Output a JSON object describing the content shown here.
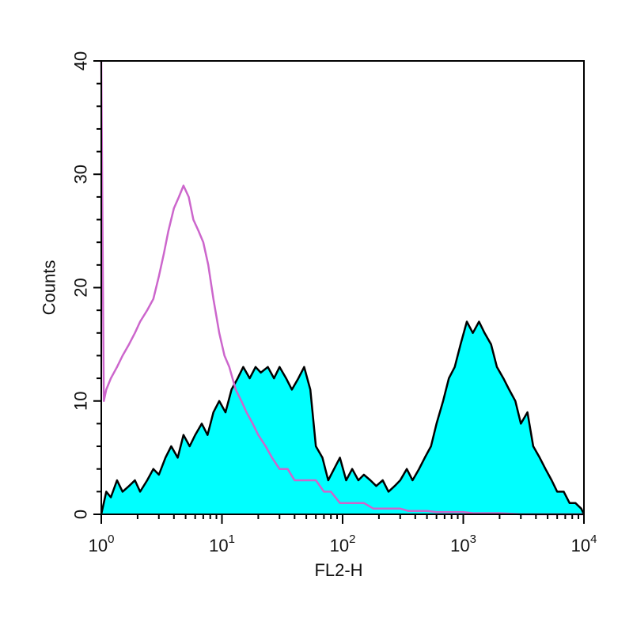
{
  "chart_data": {
    "type": "area",
    "xlabel": "FL2-H",
    "ylabel": "Counts",
    "x_scale": "log",
    "xlim": [
      1,
      10000
    ],
    "ylim": [
      0,
      40
    ],
    "x_ticks": [
      {
        "base": "10",
        "exp": "0",
        "value": 1
      },
      {
        "base": "10",
        "exp": "1",
        "value": 10
      },
      {
        "base": "10",
        "exp": "2",
        "value": 100
      },
      {
        "base": "10",
        "exp": "3",
        "value": 1000
      },
      {
        "base": "10",
        "exp": "4",
        "value": 10000
      }
    ],
    "y_ticks": [
      "0",
      "10",
      "20",
      "30",
      "40"
    ],
    "y_tick_values": [
      0,
      10,
      20,
      30,
      40
    ],
    "grid": false,
    "series": [
      {
        "style": "filled",
        "fill": "#00ffff",
        "stroke": "#000000",
        "x": [
          1,
          1.1,
          1.2,
          1.35,
          1.5,
          1.7,
          1.9,
          2.1,
          2.4,
          2.7,
          3.0,
          3.4,
          3.8,
          4.3,
          4.8,
          5.4,
          6.0,
          6.8,
          7.6,
          8.5,
          9.5,
          10.7,
          12,
          13.5,
          15,
          17,
          19,
          21,
          24,
          27,
          30,
          34,
          38,
          43,
          48,
          54,
          60,
          68,
          76,
          85,
          95,
          107,
          120,
          135,
          150,
          170,
          190,
          215,
          240,
          270,
          300,
          340,
          380,
          430,
          480,
          540,
          600,
          680,
          760,
          850,
          950,
          1070,
          1200,
          1350,
          1500,
          1700,
          1900,
          2150,
          2400,
          2700,
          3000,
          3400,
          3800,
          4300,
          4800,
          5400,
          6000,
          6800,
          7600,
          8500,
          9500,
          10000
        ],
        "values": [
          0,
          2,
          1.5,
          3,
          2,
          2.5,
          3,
          2,
          3,
          4,
          3.5,
          5,
          6,
          5,
          7,
          6,
          7,
          8,
          7,
          9,
          10,
          9,
          11,
          12,
          13,
          12,
          13,
          12.5,
          13,
          12,
          13,
          12,
          11,
          12,
          13,
          11,
          6,
          5,
          3,
          4,
          5,
          3,
          4,
          3,
          3.5,
          3,
          2.5,
          3,
          2,
          2.5,
          3,
          4,
          3,
          4,
          5,
          6,
          8,
          10,
          12,
          13,
          15,
          17,
          16,
          17,
          16,
          15,
          13,
          12,
          11,
          10,
          8,
          9,
          6,
          5,
          4,
          3,
          2,
          2,
          1,
          1,
          0.5,
          0
        ]
      },
      {
        "style": "outline",
        "stroke": "#cc66cc",
        "x": [
          1,
          1.05,
          1.1,
          1.2,
          1.35,
          1.5,
          1.7,
          1.9,
          2.1,
          2.4,
          2.7,
          3.0,
          3.3,
          3.6,
          4.0,
          4.4,
          4.8,
          5.3,
          5.8,
          6.4,
          7.0,
          7.7,
          8.5,
          9.5,
          10.5,
          11.5,
          13,
          14.5,
          16,
          18,
          20,
          23,
          26,
          30,
          35,
          40,
          46,
          53,
          60,
          70,
          80,
          95,
          110,
          130,
          150,
          180,
          210,
          250,
          300,
          350,
          420,
          500,
          600,
          700,
          850,
          1000,
          1200,
          1500,
          2000,
          3000,
          5000,
          10000
        ],
        "values": [
          40,
          10,
          11,
          12,
          13,
          14,
          15,
          16,
          17,
          18,
          19,
          21,
          23,
          25,
          27,
          28,
          29,
          28,
          26,
          25,
          24,
          22,
          19,
          16,
          14,
          13,
          11,
          10,
          9,
          8,
          7,
          6,
          5,
          4,
          4,
          3,
          3,
          3,
          3,
          2,
          2,
          1,
          1,
          1,
          1,
          0.5,
          0.5,
          0.5,
          0.5,
          0.3,
          0.3,
          0.3,
          0.2,
          0.2,
          0.2,
          0.2,
          0.1,
          0.1,
          0.1,
          0,
          0,
          0
        ]
      }
    ]
  }
}
